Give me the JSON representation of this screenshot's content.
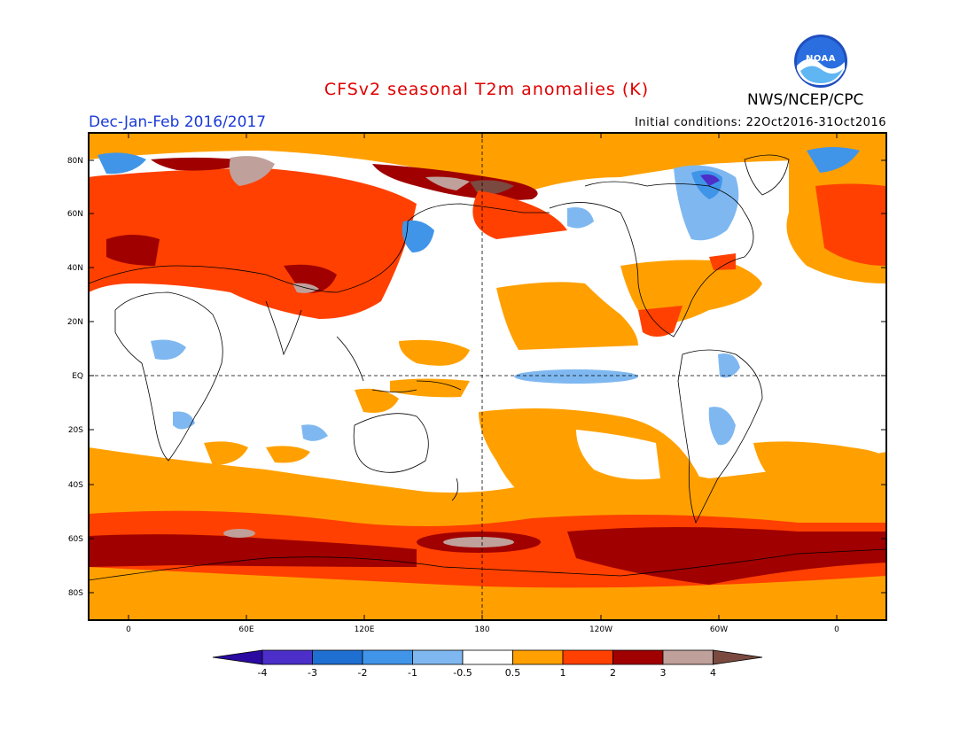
{
  "header": {
    "title": "CFSv2 seasonal T2m anomalies (K)",
    "season": "Dec-Jan-Feb 2016/2017",
    "initial_conditions": "Initial conditions: 22Oct2016-31Oct2016",
    "organization": "NWS/NCEP/CPC",
    "logo_text": "NOAA"
  },
  "map": {
    "lat_labels": [
      "80N",
      "60N",
      "40N",
      "20N",
      "EQ",
      "20S",
      "40S",
      "60S",
      "80S"
    ],
    "lon_labels": [
      "0",
      "60E",
      "120E",
      "180",
      "120W",
      "60W",
      "0"
    ]
  },
  "colorbar": {
    "labels": [
      "-4",
      "-3",
      "-2",
      "-1",
      "-0.5",
      "0.5",
      "1",
      "2",
      "3",
      "4"
    ],
    "colors": [
      "#4b2fc8",
      "#1f6fd3",
      "#4095e8",
      "#7fb8f0",
      "#ffffff",
      "#ffa000",
      "#ff4000",
      "#a00000",
      "#c0a09a"
    ],
    "low_end_color": "#2a0aa0",
    "high_end_color": "#7a4a40"
  },
  "colors": {
    "title": "#e00000",
    "season": "#1a3ad6",
    "warm_orange": "#ffa000",
    "warm_red": "#ff4000",
    "warm_darkred": "#a00000",
    "warm_pink": "#c0a09a",
    "warm_brown": "#7a4a40",
    "cool_light": "#7fb8f0",
    "cool_mid": "#4095e8",
    "cool_dark": "#1f6fd3",
    "cool_purple": "#4b2fc8"
  }
}
